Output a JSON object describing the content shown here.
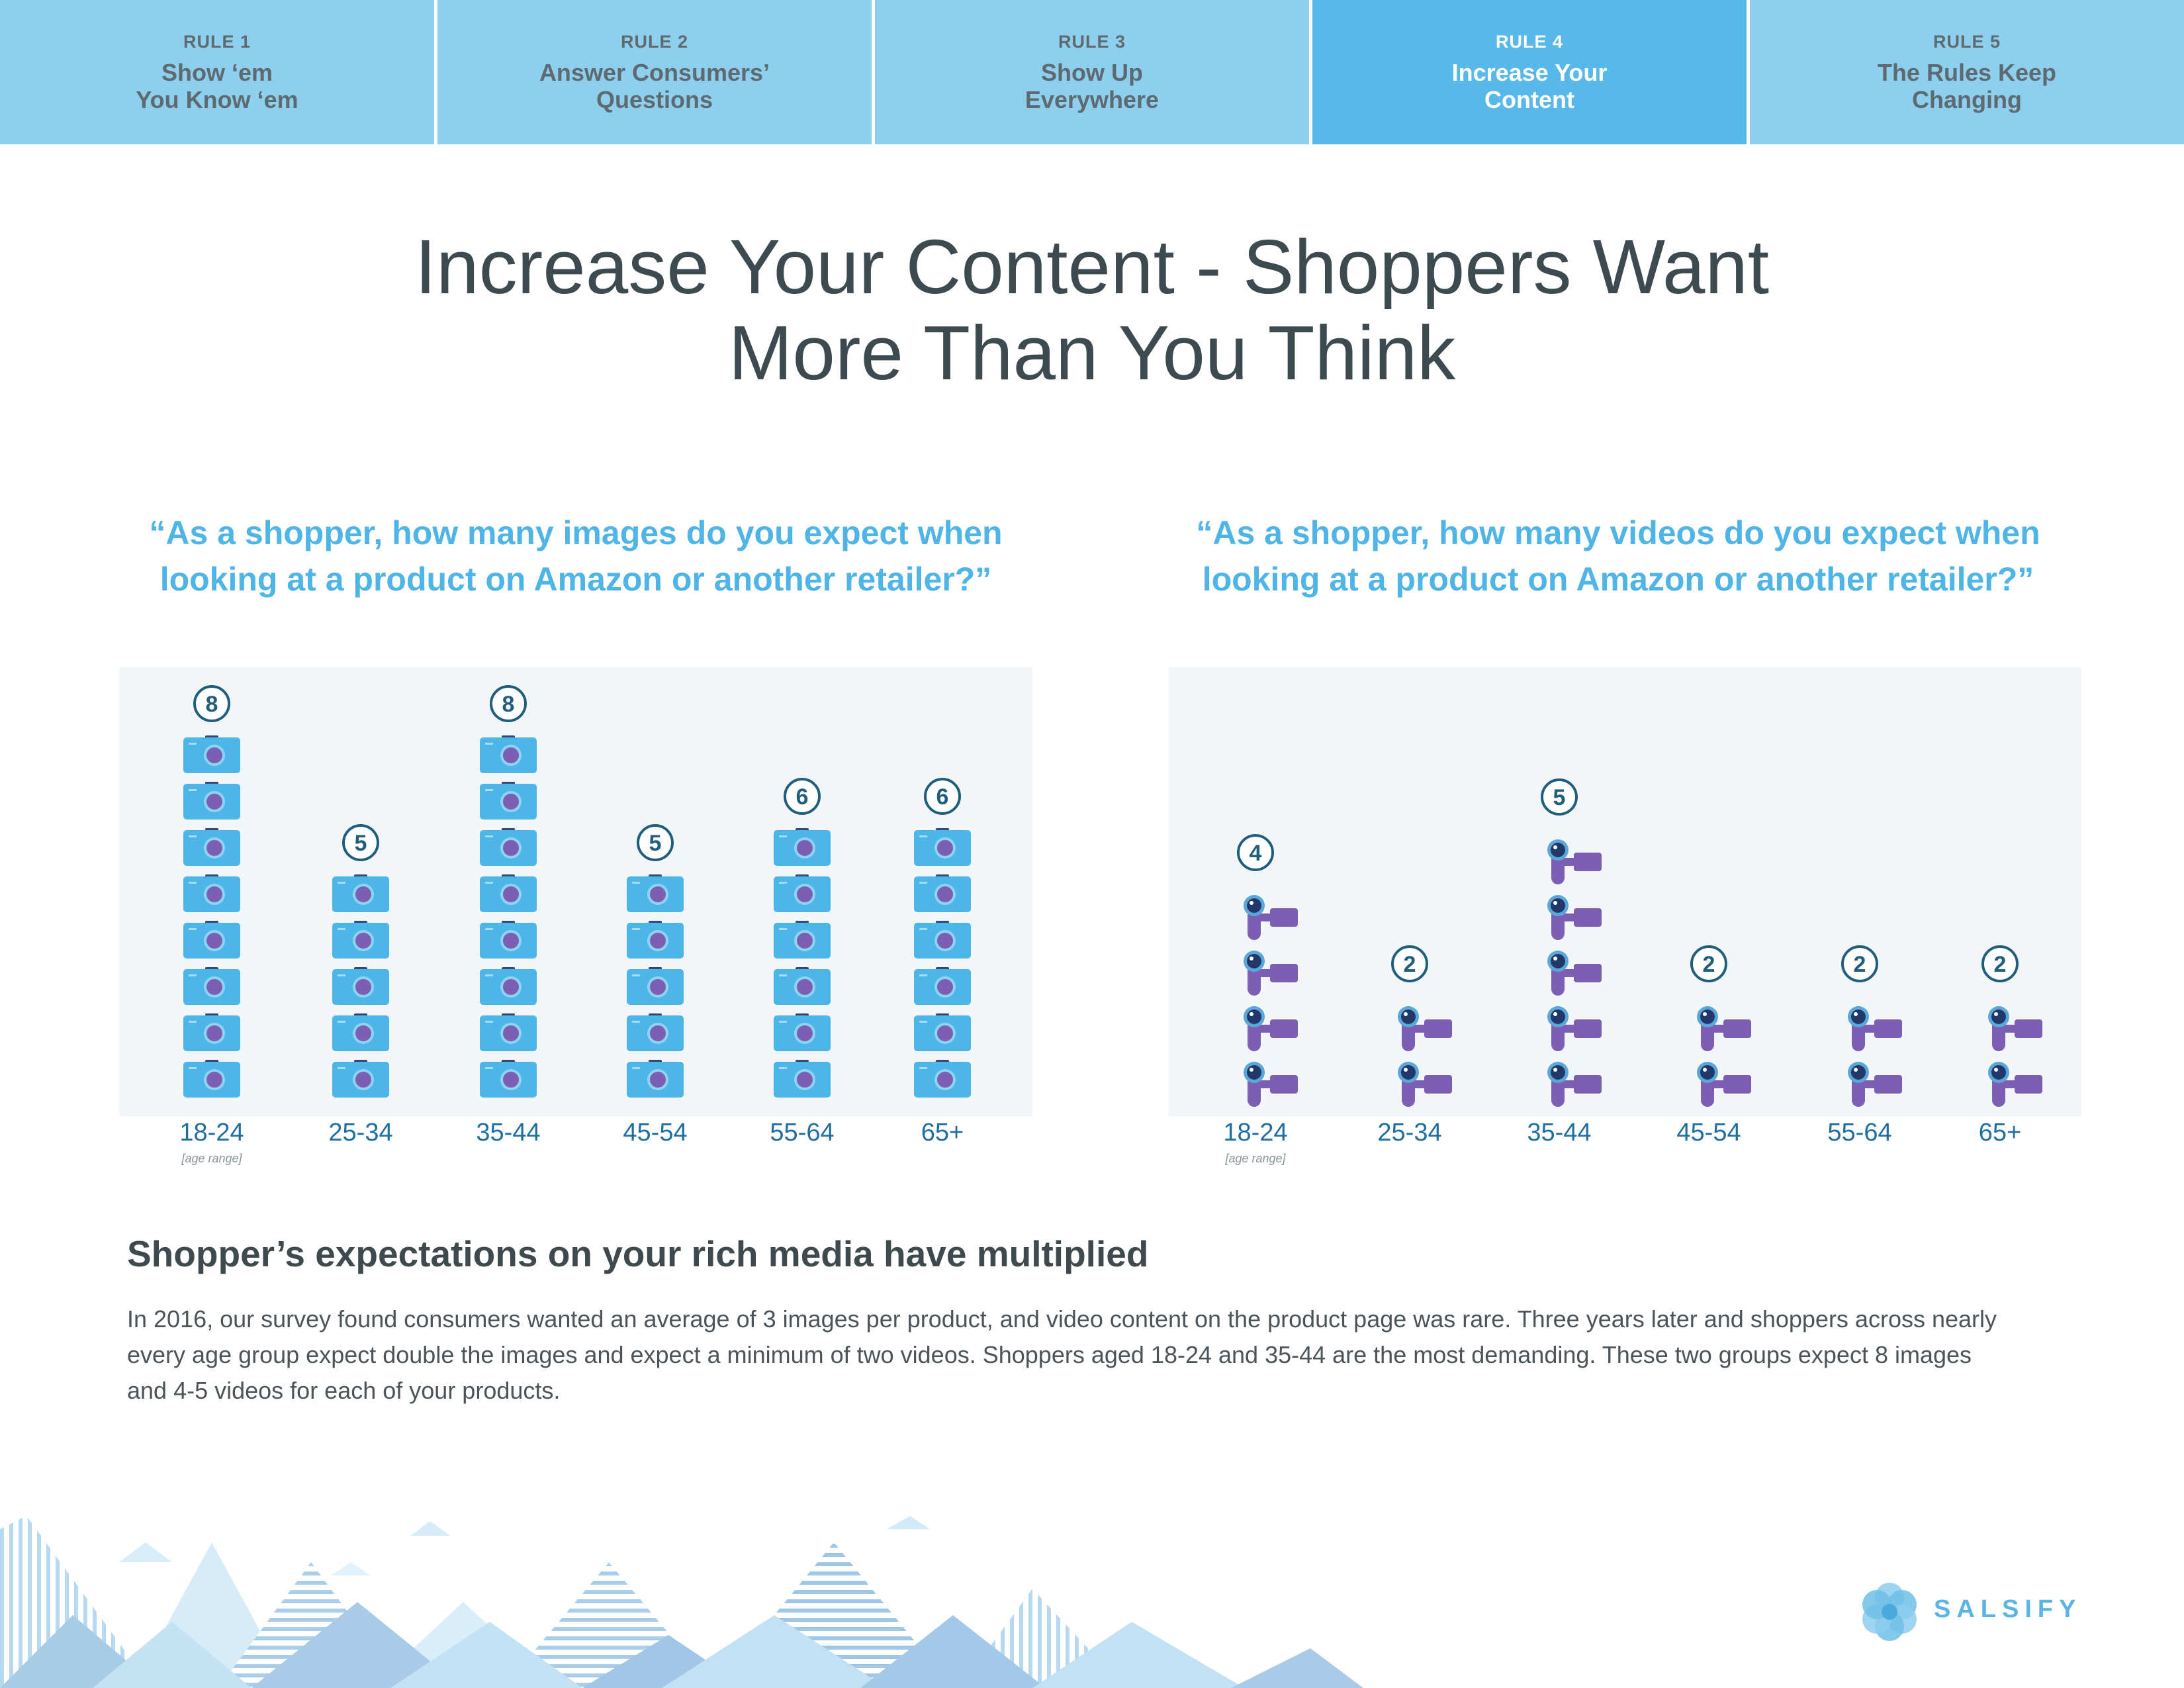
{
  "nav": {
    "tabs": [
      {
        "rule": "RULE 1",
        "title": "Show ‘em\nYou Know ‘em",
        "active": false
      },
      {
        "rule": "RULE 2",
        "title": "Answer Consumers’\nQuestions",
        "active": false
      },
      {
        "rule": "RULE 3",
        "title": "Show Up\nEverywhere",
        "active": false
      },
      {
        "rule": "RULE 4",
        "title": "Increase Your\nContent",
        "active": true
      },
      {
        "rule": "RULE 5",
        "title": "The Rules Keep\nChanging",
        "active": false
      }
    ]
  },
  "main_title": "Increase Your Content - Shoppers Want\nMore Than You Think",
  "colors": {
    "tab": "#8ecfee",
    "tab_active": "#58b8ea",
    "question": "#4fb4e6",
    "camera": "#4db6e8",
    "video": "#7c5fb2",
    "badge": "#1f5e7d",
    "axis_label": "#1f6ea0"
  },
  "chart_data": [
    {
      "type": "bar",
      "icon": "camera-icon",
      "title": "“As a shopper, how many images do you expect when\nlooking at a product on Amazon or another retailer?”",
      "categories": [
        "18-24",
        "25-34",
        "35-44",
        "45-54",
        "55-64",
        "65+"
      ],
      "values": [
        8,
        5,
        8,
        5,
        6,
        6
      ],
      "axis_note": "[age range]"
    },
    {
      "type": "bar",
      "icon": "video-camera-icon",
      "title": "“As a shopper, how many videos do you expect when\nlooking at a product on Amazon or another retailer?”",
      "categories": [
        "18-24",
        "25-34",
        "35-44",
        "45-54",
        "55-64",
        "65+"
      ],
      "values": [
        4,
        2,
        5,
        2,
        2,
        2
      ],
      "axis_note": "[age range]"
    }
  ],
  "sub_heading": "Shopper’s expectations on your rich media have multiplied",
  "body_text": "In 2016, our survey found consumers wanted an average of 3 images per product, and video content on the product page was rare. Three years later and shoppers across nearly every age group expect double the images and expect a minimum of two videos. Shoppers aged 18-24 and 35-44 are the most demanding. These two groups expect 8 images and 4-5 videos for each of your products.",
  "logo": {
    "text": "SALSIFY"
  }
}
